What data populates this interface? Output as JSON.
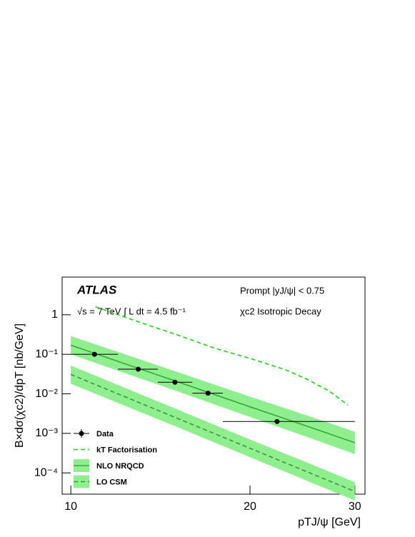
{
  "chart_data": {
    "type": "line",
    "xlabel": "pTJ/ψ [GeV]",
    "ylabel": "B×dσ(χc2)/dpT [nb/GeV]",
    "annotations": [
      "ATLAS",
      "√s = 7 TeV   ∫ L dt = 4.5 fb⁻¹",
      "Prompt  |yJ/ψ| < 0.75",
      "χc2 Isotropic Decay"
    ],
    "xscale": "log",
    "yscale": "log",
    "xlim": [
      9.67,
      31.2
    ],
    "ylim": [
      2.9e-05,
      9
    ],
    "xticks": [
      10,
      20,
      30
    ],
    "yticks": [
      {
        "value": 0.0001,
        "label": "10⁻⁴"
      },
      {
        "value": 0.001,
        "label": "10⁻³"
      },
      {
        "value": 0.01,
        "label": "10⁻²"
      },
      {
        "value": 0.1,
        "label": "10⁻¹"
      },
      1
    ],
    "legend": "lower left",
    "series": [
      {
        "name": "Data",
        "kind": "points",
        "color": "#000000",
        "x": [
          10.96,
          12.98,
          14.96,
          17.0,
          22.2
        ],
        "xlow": [
          10,
          12,
          14,
          16,
          18
        ],
        "xhigh": [
          12,
          14,
          16,
          18,
          30
        ],
        "values": [
          0.1,
          0.042,
          0.0197,
          0.0104,
          0.002
        ]
      },
      {
        "name": "kT Factorisation",
        "kind": "dashed",
        "color": "#22cc22",
        "x": [
          11.0,
          13.2,
          15.2,
          17.5,
          20.0,
          23.0,
          25.0,
          27.2,
          29.2
        ],
        "values": [
          1.6,
          0.61,
          0.3,
          0.14,
          0.079,
          0.04,
          0.023,
          0.0116,
          0.0052
        ]
      },
      {
        "name": "NLO NRQCD",
        "kind": "band",
        "color": "#33aa33",
        "band_color": "#8fef8f",
        "x": [
          10,
          15,
          20,
          25,
          30
        ],
        "values": [
          0.17,
          0.021,
          0.0047,
          0.0015,
          0.00058
        ],
        "upper": [
          0.29,
          0.037,
          0.0085,
          0.0028,
          0.0011
        ],
        "lower": [
          0.1,
          0.012,
          0.0026,
          0.0008,
          0.0003
        ]
      },
      {
        "name": "LO CSM",
        "kind": "dashedband",
        "color": "#339933",
        "band_color": "#8fef8f",
        "x": [
          10,
          15,
          20,
          25,
          30
        ],
        "values": [
          0.031,
          0.0025,
          0.00042,
          0.000105,
          3.4e-05
        ],
        "upper": [
          0.052,
          0.0042,
          0.0007,
          0.00018,
          5.8e-05
        ],
        "lower": [
          0.018,
          0.0015,
          0.00025,
          6.2e-05,
          2e-05
        ]
      }
    ]
  }
}
